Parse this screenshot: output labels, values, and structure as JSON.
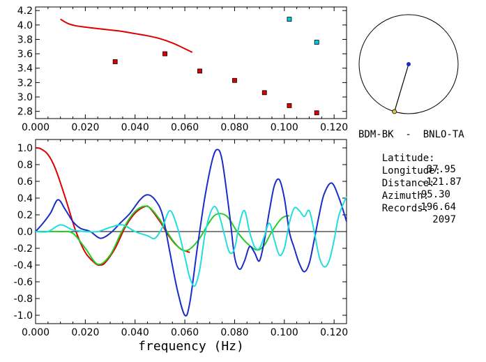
{
  "chart_data": [
    {
      "type": "scatter",
      "xlim": [
        0.0,
        0.125
      ],
      "ylim": [
        2.7,
        4.25
      ],
      "x_ticks": [
        "0.000",
        "0.020",
        "0.040",
        "0.060",
        "0.080",
        "0.100",
        "0.120"
      ],
      "y_ticks": [
        "2.8",
        "3.0",
        "3.2",
        "3.4",
        "3.6",
        "3.8",
        "4.0",
        "4.2"
      ],
      "series": [
        {
          "color": "#dd0000",
          "style": "line",
          "x": [
            0.01,
            0.013,
            0.016,
            0.02,
            0.025,
            0.03,
            0.035,
            0.04,
            0.045,
            0.05,
            0.055,
            0.06,
            0.063
          ],
          "y": [
            4.08,
            4.02,
            3.99,
            3.97,
            3.95,
            3.93,
            3.91,
            3.88,
            3.85,
            3.81,
            3.75,
            3.67,
            3.62
          ]
        },
        {
          "color": "#dd0000",
          "style": "markers",
          "x": [
            0.032,
            0.052,
            0.066,
            0.08,
            0.092,
            0.102,
            0.113
          ],
          "y": [
            3.49,
            3.6,
            3.36,
            3.23,
            3.06,
            2.88,
            2.78
          ]
        },
        {
          "color": "#00ccdd",
          "style": "markers",
          "x": [
            0.102,
            0.113
          ],
          "y": [
            4.08,
            3.76
          ]
        }
      ]
    },
    {
      "type": "line",
      "xlabel": "frequency (Hz)",
      "xlim": [
        0.0,
        0.125
      ],
      "ylim": [
        -1.1,
        1.1
      ],
      "x_ticks": [
        "0.000",
        "0.020",
        "0.040",
        "0.060",
        "0.080",
        "0.100",
        "0.120"
      ],
      "y_ticks": [
        "1.0",
        "0.8",
        "0.6",
        "0.4",
        "0.2",
        "0.0",
        "-0.2",
        "-0.4",
        "-0.6",
        "-0.8",
        "-1.0"
      ],
      "zero_line": true,
      "series": [
        {
          "color": "#dd0000",
          "x": [
            0.0,
            0.002,
            0.005,
            0.008,
            0.012,
            0.016,
            0.02,
            0.024,
            0.026,
            0.028,
            0.032,
            0.036,
            0.04,
            0.044,
            0.046,
            0.05,
            0.054,
            0.058,
            0.062
          ],
          "y": [
            1.0,
            0.99,
            0.92,
            0.75,
            0.4,
            0.02,
            -0.25,
            -0.38,
            -0.4,
            -0.37,
            -0.2,
            0.05,
            0.22,
            0.3,
            0.28,
            0.12,
            -0.07,
            -0.2,
            -0.25
          ]
        },
        {
          "color": "#22cc22",
          "x": [
            0.0,
            0.005,
            0.01,
            0.015,
            0.02,
            0.025,
            0.03,
            0.035,
            0.04,
            0.045,
            0.05,
            0.055,
            0.06,
            0.065,
            0.07,
            0.073,
            0.077,
            0.081,
            0.085,
            0.089,
            0.092,
            0.095,
            0.099,
            0.102
          ],
          "y": [
            0.0,
            0.0,
            0.0,
            -0.02,
            -0.2,
            -0.39,
            -0.28,
            0.02,
            0.24,
            0.3,
            0.14,
            -0.1,
            -0.23,
            -0.12,
            0.12,
            0.21,
            0.18,
            0.0,
            -0.14,
            -0.22,
            -0.16,
            0.0,
            0.16,
            0.19
          ]
        },
        {
          "color": "#1a2cc8",
          "x": [
            0.0,
            0.003,
            0.006,
            0.009,
            0.012,
            0.015,
            0.018,
            0.022,
            0.026,
            0.03,
            0.034,
            0.038,
            0.042,
            0.045,
            0.048,
            0.051,
            0.054,
            0.057,
            0.06,
            0.062,
            0.065,
            0.068,
            0.071,
            0.073,
            0.075,
            0.078,
            0.08,
            0.082,
            0.084,
            0.086,
            0.088,
            0.09,
            0.092,
            0.094,
            0.096,
            0.098,
            0.1,
            0.102,
            0.104,
            0.106,
            0.108,
            0.11,
            0.112,
            0.114,
            0.116,
            0.119,
            0.122,
            0.125
          ],
          "y": [
            0.0,
            0.1,
            0.22,
            0.38,
            0.26,
            0.12,
            0.04,
            0.0,
            -0.08,
            -0.02,
            0.1,
            0.22,
            0.38,
            0.44,
            0.38,
            0.2,
            -0.25,
            -0.7,
            -1.0,
            -0.85,
            -0.2,
            0.4,
            0.85,
            0.98,
            0.85,
            0.2,
            -0.3,
            -0.45,
            -0.35,
            -0.18,
            -0.25,
            -0.35,
            -0.1,
            0.25,
            0.55,
            0.62,
            0.4,
            0.0,
            -0.2,
            -0.38,
            -0.48,
            -0.38,
            -0.1,
            0.2,
            0.45,
            0.58,
            0.4,
            0.12
          ]
        },
        {
          "color": "#22dddd",
          "x": [
            0.0,
            0.005,
            0.01,
            0.015,
            0.02,
            0.025,
            0.03,
            0.035,
            0.04,
            0.045,
            0.048,
            0.051,
            0.054,
            0.057,
            0.06,
            0.062,
            0.064,
            0.066,
            0.068,
            0.07,
            0.072,
            0.074,
            0.076,
            0.078,
            0.08,
            0.082,
            0.084,
            0.086,
            0.088,
            0.09,
            0.092,
            0.094,
            0.096,
            0.098,
            0.1,
            0.102,
            0.104,
            0.106,
            0.108,
            0.11,
            0.112,
            0.114,
            0.116,
            0.118,
            0.12,
            0.122,
            0.125
          ],
          "y": [
            0.0,
            0.0,
            0.08,
            0.02,
            0.0,
            0.0,
            0.05,
            0.08,
            0.0,
            -0.05,
            -0.08,
            0.05,
            0.25,
            0.05,
            -0.3,
            -0.55,
            -0.65,
            -0.45,
            -0.05,
            0.2,
            0.3,
            0.18,
            -0.05,
            -0.25,
            -0.2,
            0.1,
            0.25,
            0.0,
            -0.18,
            -0.2,
            -0.05,
            0.1,
            -0.1,
            -0.28,
            -0.2,
            0.1,
            0.28,
            0.25,
            0.18,
            0.25,
            0.0,
            -0.3,
            -0.42,
            -0.35,
            -0.1,
            0.2,
            0.42
          ]
        }
      ]
    }
  ],
  "station": {
    "name": "BDM-BK  -  BNLO-TA",
    "rows": [
      {
        "label": "Latitude:",
        "value": "37.95"
      },
      {
        "label": "Longitude:",
        "value": "-121.87"
      },
      {
        "label": "Distance:",
        "value": "95.30"
      },
      {
        "label": "Azimuth:",
        "value": "196.64"
      },
      {
        "label": "Records:",
        "value": "2097"
      }
    ],
    "azimuth_deg": 196.64,
    "station_color": "#1a2cc8",
    "marker_color": "#e8c040"
  }
}
